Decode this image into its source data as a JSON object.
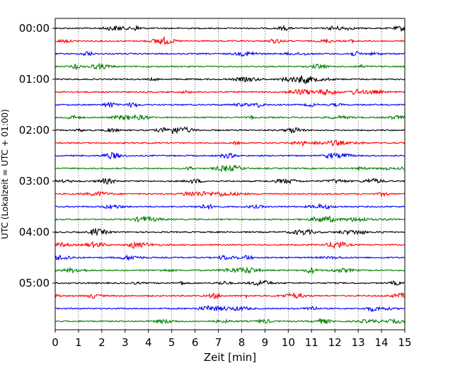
{
  "chart_data": {
    "type": "line",
    "xlabel": "Zeit  [min]",
    "ylabel": "UTC (Lokalzeit = UTC + 01:00)",
    "xlim": [
      0,
      15
    ],
    "x_ticks": [
      0,
      1,
      2,
      3,
      4,
      5,
      6,
      7,
      8,
      9,
      10,
      11,
      12,
      13,
      14,
      15
    ],
    "grid": "vertical dotted",
    "y_ticks": [
      "00:00",
      "01:00",
      "02:00",
      "03:00",
      "04:00",
      "05:00"
    ],
    "trace_interval_min": 15,
    "trace_colors": [
      "#000000",
      "#ff0000",
      "#0000ff",
      "#008000"
    ],
    "traces": [
      "00:00",
      "00:15",
      "00:30",
      "00:45",
      "01:00",
      "01:15",
      "01:30",
      "01:45",
      "02:00",
      "02:15",
      "02:30",
      "02:45",
      "03:00",
      "03:15",
      "03:30",
      "03:45",
      "04:00",
      "04:15",
      "04:30",
      "04:45",
      "05:00",
      "05:15",
      "05:30",
      "05:45"
    ]
  }
}
